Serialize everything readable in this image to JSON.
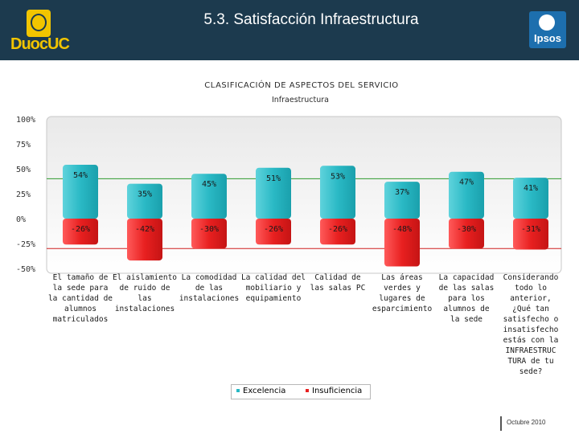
{
  "header": {
    "title": "5.3. Satisfacción Infraestructura",
    "logo_text": "DuocUC",
    "partner_logo": "Ipsos"
  },
  "footer": {
    "date": "Octubre 2010"
  },
  "colors": {
    "header_bg": "#1c3a4e",
    "excelencia": "#27b8c4",
    "insuficiencia": "#e82020",
    "accent_gold": "#f2c500"
  },
  "chart_data": {
    "type": "bar",
    "title": "CLASIFICACIÓN DE ASPECTOS DEL SERVICIO",
    "subtitle": "Infraestructura",
    "categories": [
      "El tamaño de la sede para la cantidad de alumnos matriculados",
      "El aislamiento de ruido de las instalaciones",
      "La comodidad de las instalaciones",
      "La calidad del mobiliario y equipamiento",
      "Calidad de las salas PC",
      "Las áreas verdes y lugares de esparcimiento",
      "La capacidad de las salas para los alumnos de la sede",
      "Considerando todo lo anterior, ¿Qué tan satisfecho o insatisfecho estás con la INFRAESTRUCTURA de tu sede?"
    ],
    "category_lines": [
      [
        "El tamaño de",
        "la sede para",
        "la cantidad de",
        "alumnos",
        "matriculados"
      ],
      [
        "El aislamiento",
        "de ruido de",
        "las",
        "instalaciones"
      ],
      [
        "La comodidad",
        "de las",
        "instalaciones"
      ],
      [
        "La calidad del",
        "mobiliario y",
        "equipamiento"
      ],
      [
        "Calidad de",
        "las salas PC"
      ],
      [
        "Las áreas",
        "verdes y",
        "lugares de",
        "esparcimiento"
      ],
      [
        "La capacidad",
        "de las salas",
        "para los",
        "alumnos de",
        "la sede"
      ],
      [
        "Considerando",
        "todo lo",
        "anterior,",
        "¿Qué tan",
        "satisfecho o",
        "insatisfecho",
        "estás con la",
        "INFRAESTRUC",
        "TURA de tu",
        "sede?"
      ]
    ],
    "series": [
      {
        "name": "Excelencia",
        "values": [
          54,
          35,
          45,
          51,
          53,
          37,
          47,
          41
        ],
        "labels": [
          "54%",
          "35%",
          "45%",
          "51%",
          "53%",
          "37%",
          "47%",
          "41%"
        ]
      },
      {
        "name": "Insuficiencia",
        "values": [
          -26,
          -42,
          -30,
          -26,
          -26,
          -48,
          -30,
          -31
        ],
        "labels": [
          "-26%",
          "-42%",
          "-30%",
          "-26%",
          "-26%",
          "-48%",
          "-30%",
          "-31%"
        ]
      }
    ],
    "y_ticks": [
      "100%",
      "75%",
      "50%",
      "25%",
      "0%",
      "-25%",
      "-50%"
    ],
    "y_tick_values": [
      100,
      75,
      50,
      25,
      0,
      -25,
      -50
    ],
    "ylim": [
      -50,
      100
    ],
    "reference_lines": [
      40,
      -30
    ],
    "legend": [
      "Excelencia",
      "Insuficiencia"
    ],
    "legend_position": "bottom"
  }
}
